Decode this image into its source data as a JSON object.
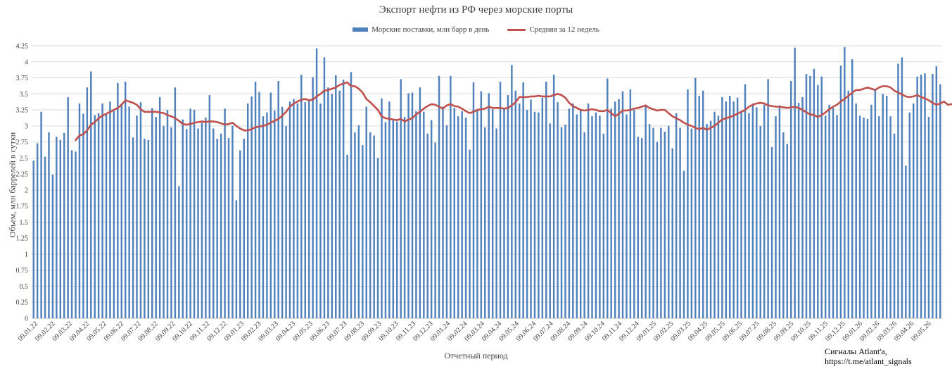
{
  "chart_data": {
    "type": "bar",
    "title": "Экспорт нефти из РФ через морские порты",
    "xlabel": "Отчетный период",
    "ylabel": "Объем, млн баррелей в сутки",
    "ylim": [
      0,
      4.25
    ],
    "yticks": [
      "0",
      "0.25",
      "0.5",
      "0.75",
      "1",
      "1.25",
      "1.5",
      "1.75",
      "2",
      "2.25",
      "2.5",
      "2.75",
      "3",
      "3.25",
      "3.5",
      "3.75",
      "4",
      "4.25"
    ],
    "grid": true,
    "legend_position": "top",
    "bar_color": "#4f81bd",
    "line_color": "#c0504d",
    "x_tick_labels": [
      "09.01.22",
      "09.02.22",
      "09.03.22",
      "09.04.22",
      "09.05.22",
      "09.06.22",
      "09.07.22",
      "09.08.22",
      "09.09.22",
      "09.10.22",
      "09.11.22",
      "09.12.22",
      "09.01.23",
      "09.02.23",
      "09.03.23",
      "09.04.23",
      "09.05.23",
      "09.06.23",
      "09.07.23",
      "09.08.23",
      "09.09.23",
      "09.10.23",
      "09.11.23",
      "09.12.23",
      "09.01.24",
      "09.02.24",
      "09.03.24",
      "09.04.24",
      "09.05.24",
      "09.06.24",
      "09.07.24",
      "09.08.24",
      "09.09.24",
      "09.10.24",
      "09.11.24",
      "09.12.24",
      "09.01.25",
      "09.02.25",
      "09.03.25",
      "09.04.25",
      "09.05.25",
      "09.06.25",
      "09.07.25",
      "09.08.25",
      "09.09.25",
      "09.10.25",
      "09.11.25",
      "09.12.25",
      "09.01.26",
      "09.02.26",
      "09.03.26",
      "09.04.26",
      "09.05.26"
    ],
    "series": [
      {
        "name": "Морские поставки, млн барр в день",
        "type": "bar",
        "values": [
          2.46,
          2.73,
          3.22,
          2.52,
          2.9,
          2.24,
          2.83,
          2.78,
          2.89,
          3.45,
          2.62,
          2.6,
          3.35,
          3.19,
          3.6,
          3.85,
          3.17,
          3.2,
          3.35,
          3.2,
          3.38,
          3.23,
          3.67,
          3.35,
          3.69,
          3.3,
          2.82,
          3.16,
          3.37,
          2.8,
          2.78,
          3.28,
          3.14,
          3.45,
          3.0,
          3.25,
          2.98,
          3.6,
          2.06,
          3.1,
          2.95,
          3.27,
          3.25,
          2.96,
          3.05,
          3.13,
          3.48,
          2.96,
          2.8,
          2.88,
          3.27,
          2.81,
          3.0,
          1.84,
          2.62,
          2.8,
          3.35,
          3.46,
          3.69,
          3.53,
          3.15,
          3.21,
          3.52,
          3.24,
          3.7,
          3.3,
          3.0,
          3.38,
          3.42,
          3.35,
          3.8,
          3.37,
          3.4,
          3.76,
          4.21,
          3.35,
          4.07,
          3.6,
          3.5,
          3.79,
          3.55,
          3.72,
          2.55,
          3.84,
          2.9,
          3.01,
          2.7,
          3.3,
          2.9,
          2.85,
          2.5,
          3.43,
          3.06,
          3.38,
          3.1,
          3.07,
          3.73,
          3.14,
          3.51,
          3.52,
          3.23,
          3.6,
          3.22,
          2.88,
          3.09,
          2.74,
          3.78,
          3.3,
          3.01,
          3.78,
          3.28,
          3.15,
          3.23,
          3.13,
          2.63,
          3.68,
          3.26,
          3.54,
          2.98,
          3.51,
          3.26,
          2.96,
          3.69,
          3.27,
          3.48,
          3.95,
          3.55,
          3.35,
          3.68,
          3.25,
          3.41,
          3.22,
          3.21,
          3.44,
          3.69,
          3.04,
          3.8,
          3.37,
          2.98,
          3.02,
          3.27,
          3.35,
          3.18,
          3.25,
          2.9,
          3.35,
          3.15,
          3.21,
          3.16,
          2.88,
          3.74,
          3.27,
          3.38,
          3.42,
          3.54,
          3.18,
          3.57,
          3.25,
          2.83,
          2.81,
          3.33,
          3.03,
          2.97,
          2.75,
          2.97,
          2.91,
          3.0,
          2.65,
          3.2,
          2.97,
          2.3,
          3.57,
          2.96,
          3.75,
          3.47,
          3.55,
          3.03,
          3.08,
          3.22,
          3.16,
          3.45,
          3.38,
          3.47,
          3.38,
          3.44,
          3.21,
          3.65,
          3.2,
          3.35,
          3.29,
          3.0,
          3.33,
          3.73,
          2.67,
          3.15,
          3.32,
          2.9,
          2.72,
          3.7,
          4.22,
          3.36,
          3.45,
          3.81,
          3.78,
          3.89,
          3.64,
          3.77,
          3.16,
          3.33,
          3.28,
          3.17,
          3.94,
          4.23,
          3.55,
          4.04,
          3.35,
          3.16,
          3.13,
          3.11,
          3.33,
          3.58,
          3.15,
          3.5,
          3.47,
          3.15,
          2.88,
          3.97,
          4.07,
          2.38,
          3.21,
          3.35,
          3.77,
          3.8,
          3.82,
          3.14,
          3.81,
          3.93,
          3.65
        ]
      },
      {
        "name": "Средняя за 12 недель",
        "type": "line",
        "values": [
          null,
          null,
          null,
          null,
          null,
          null,
          null,
          null,
          null,
          null,
          null,
          2.78,
          2.85,
          2.87,
          2.93,
          3.02,
          3.06,
          3.12,
          3.16,
          3.19,
          3.22,
          3.25,
          3.28,
          3.33,
          3.4,
          3.38,
          3.36,
          3.33,
          3.26,
          3.22,
          3.22,
          3.22,
          3.22,
          3.21,
          3.2,
          3.17,
          3.15,
          3.12,
          3.08,
          3.03,
          3.02,
          3.03,
          3.05,
          3.06,
          3.07,
          3.06,
          3.07,
          3.07,
          3.06,
          3.04,
          3.02,
          3.03,
          3.05,
          3.0,
          2.96,
          2.93,
          2.93,
          2.95,
          2.98,
          2.99,
          3.0,
          3.02,
          3.05,
          3.08,
          3.11,
          3.16,
          3.22,
          3.3,
          3.35,
          3.38,
          3.41,
          3.42,
          3.4,
          3.41,
          3.46,
          3.5,
          3.55,
          3.56,
          3.58,
          3.6,
          3.64,
          3.66,
          3.68,
          3.62,
          3.62,
          3.58,
          3.52,
          3.42,
          3.37,
          3.31,
          3.25,
          3.15,
          3.12,
          3.11,
          3.1,
          3.09,
          3.11,
          3.07,
          3.1,
          3.12,
          3.18,
          3.22,
          3.27,
          3.31,
          3.34,
          3.33,
          3.3,
          3.27,
          3.32,
          3.34,
          3.31,
          3.3,
          3.27,
          3.23,
          3.2,
          3.22,
          3.25,
          3.26,
          3.27,
          3.3,
          3.28,
          3.28,
          3.28,
          3.27,
          3.28,
          3.32,
          3.37,
          3.45,
          3.45,
          3.45,
          3.46,
          3.46,
          3.47,
          3.46,
          3.46,
          3.46,
          3.48,
          3.5,
          3.48,
          3.44,
          3.36,
          3.31,
          3.28,
          3.25,
          3.24,
          3.25,
          3.26,
          3.25,
          3.23,
          3.23,
          3.25,
          3.2,
          3.15,
          3.19,
          3.24,
          3.24,
          3.25,
          3.27,
          3.28,
          3.3,
          3.32,
          3.28,
          3.26,
          3.24,
          3.25,
          3.25,
          3.2,
          3.15,
          3.12,
          3.09,
          3.05,
          3.02,
          3.0,
          2.97,
          2.95,
          2.97,
          2.94,
          2.97,
          3.0,
          3.05,
          3.1,
          3.12,
          3.14,
          3.16,
          3.19,
          3.22,
          3.25,
          3.3,
          3.33,
          3.35,
          3.36,
          3.35,
          3.32,
          3.31,
          3.3,
          3.3,
          3.29,
          3.28,
          3.29,
          3.3,
          3.28,
          3.25,
          3.21,
          3.18,
          3.17,
          3.14,
          3.17,
          3.21,
          3.26,
          3.3,
          3.33,
          3.38,
          3.42,
          3.47,
          3.52,
          3.56,
          3.56,
          3.58,
          3.6,
          3.58,
          3.56,
          3.6,
          3.62,
          3.62,
          3.6,
          3.55,
          3.52,
          3.49,
          3.46,
          3.45,
          3.46,
          3.48,
          3.45,
          3.43,
          3.4,
          3.36,
          3.33,
          3.35,
          3.38,
          3.33,
          3.34,
          3.36,
          3.38,
          3.4,
          3.42,
          3.46,
          3.44,
          3.48,
          3.52,
          3.58
        ]
      }
    ]
  },
  "credit": {
    "line1": "Сигналы Atlant'a,",
    "line2": "https://t.me/atlant_signals"
  }
}
